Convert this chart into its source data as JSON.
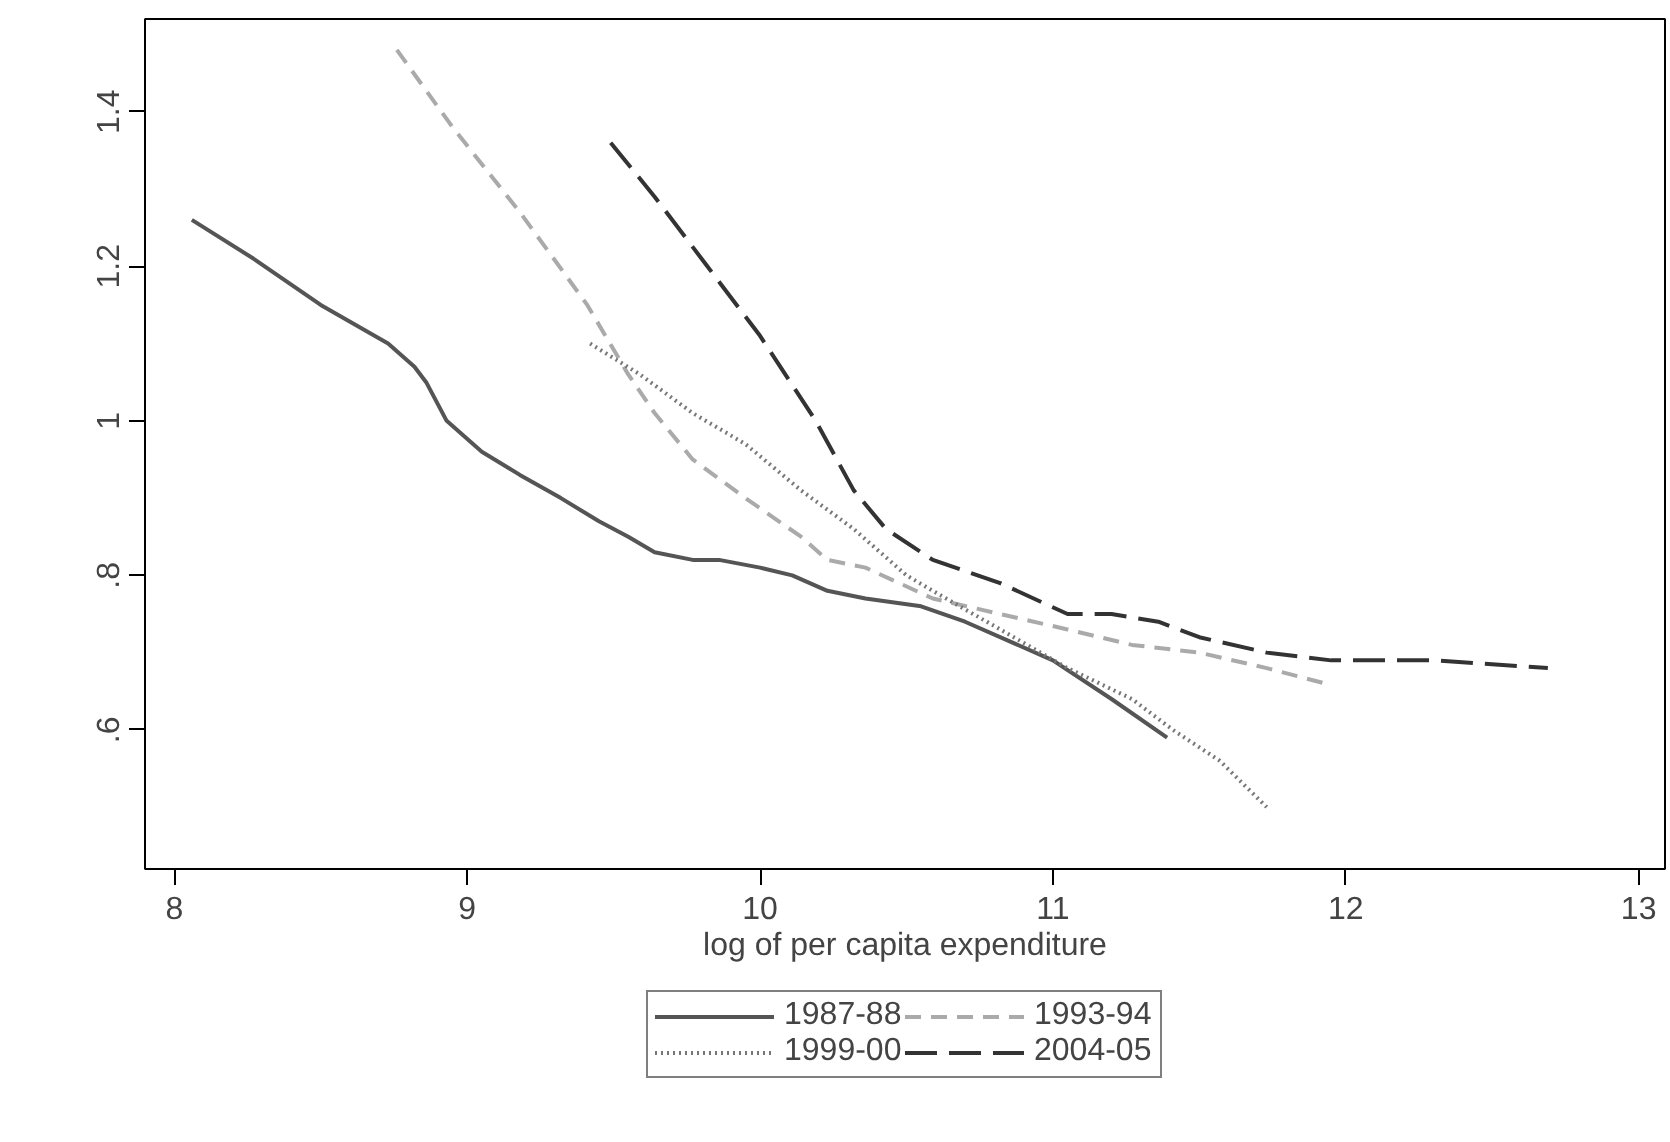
{
  "chart_data": {
    "type": "line",
    "xlabel": "log of per capita expenditure",
    "xlim": [
      7.9,
      13.09
    ],
    "ylim": [
      0.42,
      1.52
    ],
    "xticks": [
      8,
      9,
      10,
      11,
      12,
      13
    ],
    "yticks": [
      {
        "value": 0.6,
        "label": ".6"
      },
      {
        "value": 0.8,
        "label": ".8"
      },
      {
        "value": 1,
        "label": "1"
      },
      {
        "value": 1.2,
        "label": "1.2"
      },
      {
        "value": 1.4,
        "label": "1.4"
      }
    ],
    "grid": false,
    "legend": "bottom",
    "marker": "none",
    "series": [
      {
        "name": "1987-88",
        "color": "#555555",
        "line_style": "solid",
        "x": [
          8.06,
          8.27,
          8.5,
          8.73,
          8.82,
          8.86,
          8.93,
          9.05,
          9.18,
          9.32,
          9.45,
          9.55,
          9.64,
          9.77,
          9.86,
          10.0,
          10.11,
          10.23,
          10.36,
          10.55,
          10.7,
          11.0,
          11.2,
          11.39
        ],
        "values": [
          1.26,
          1.21,
          1.15,
          1.1,
          1.07,
          1.05,
          1.0,
          0.96,
          0.93,
          0.9,
          0.87,
          0.85,
          0.83,
          0.82,
          0.82,
          0.81,
          0.8,
          0.78,
          0.77,
          0.76,
          0.74,
          0.69,
          0.64,
          0.59
        ]
      },
      {
        "name": "1993-94",
        "color": "#aaaaaa",
        "line_style": "dashed",
        "x": [
          8.76,
          8.95,
          9.18,
          9.41,
          9.55,
          9.64,
          9.77,
          9.95,
          10.14,
          10.23,
          10.36,
          10.59,
          10.82,
          11.05,
          11.27,
          11.5,
          11.73,
          11.93
        ],
        "values": [
          1.48,
          1.38,
          1.27,
          1.15,
          1.06,
          1.01,
          0.95,
          0.9,
          0.85,
          0.82,
          0.81,
          0.77,
          0.75,
          0.73,
          0.71,
          0.7,
          0.68,
          0.66
        ]
      },
      {
        "name": "1999-00",
        "color": "#777777",
        "line_style": "dotted",
        "x": [
          9.42,
          9.59,
          9.77,
          9.95,
          10.14,
          10.32,
          10.5,
          10.59,
          10.82,
          11.05,
          11.27,
          11.41,
          11.57,
          11.73
        ],
        "values": [
          1.1,
          1.06,
          1.01,
          0.97,
          0.91,
          0.86,
          0.8,
          0.78,
          0.73,
          0.68,
          0.64,
          0.6,
          0.56,
          0.5
        ]
      },
      {
        "name": "2004-05",
        "color": "#333333",
        "line_style": "dashed",
        "x": [
          9.49,
          9.64,
          9.82,
          10.0,
          10.19,
          10.32,
          10.43,
          10.55,
          10.59,
          10.82,
          11.05,
          11.2,
          11.36,
          11.5,
          11.73,
          11.95,
          12.3,
          12.69
        ],
        "values": [
          1.36,
          1.29,
          1.2,
          1.11,
          1.0,
          0.91,
          0.86,
          0.83,
          0.82,
          0.79,
          0.75,
          0.75,
          0.74,
          0.72,
          0.7,
          0.69,
          0.69,
          0.68
        ]
      }
    ]
  }
}
